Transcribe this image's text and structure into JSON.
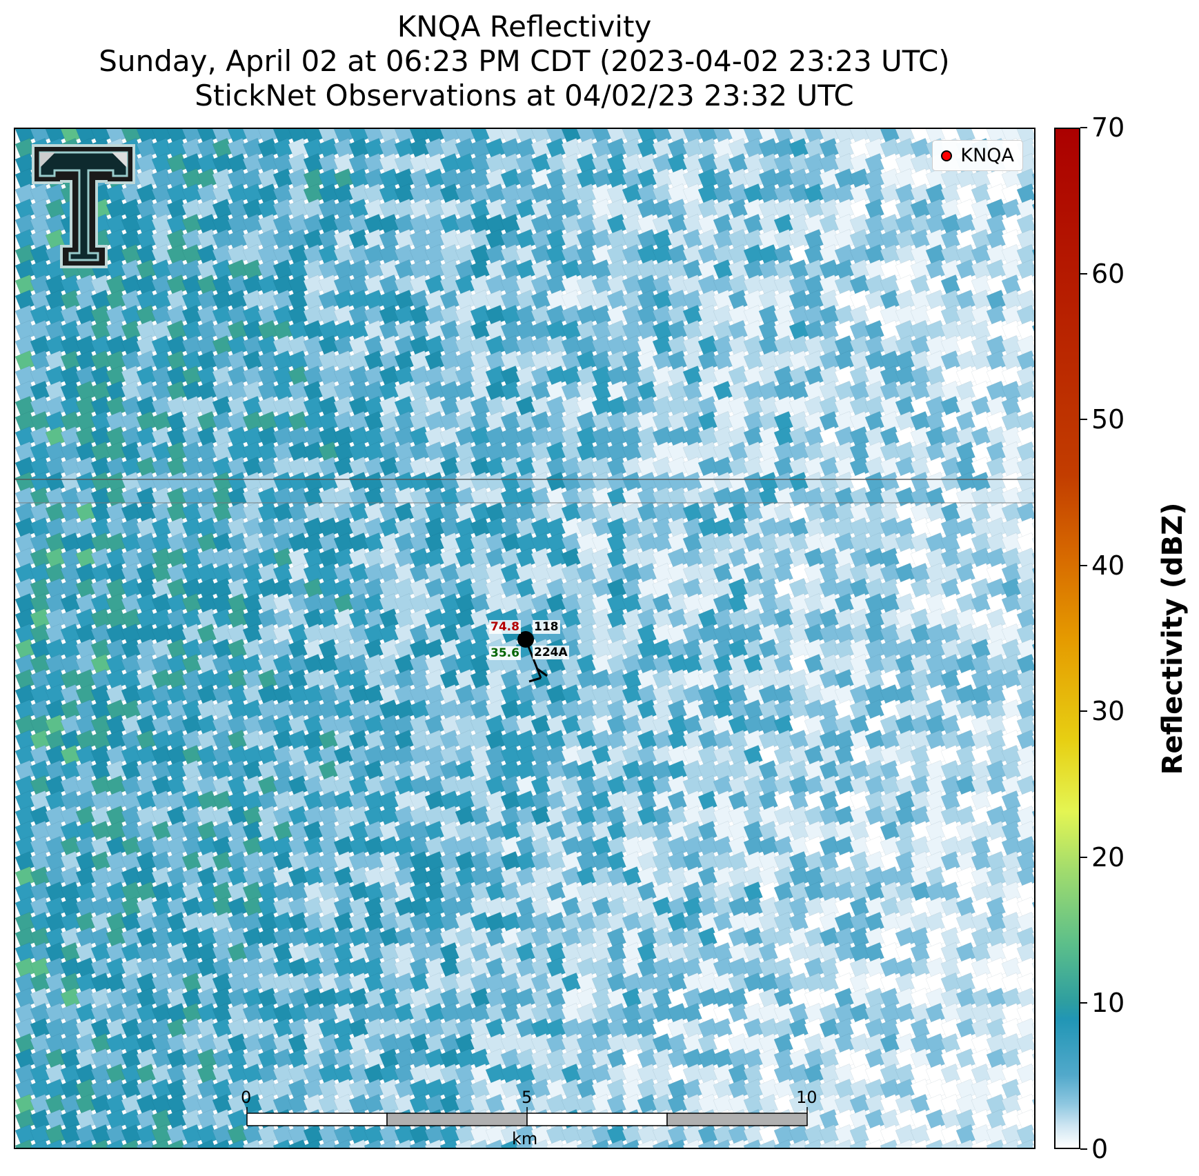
{
  "title": {
    "line1": "KNQA Reflectivity",
    "line2": "Sunday, April 02 at 06:23 PM CDT (2023-04-02 23:23 UTC)",
    "line3": "StickNet Observations at 04/02/23 23:32 UTC"
  },
  "legend": {
    "label": "KNQA",
    "marker_color": "#ff0000"
  },
  "logo": {
    "icon": "texas-tech-double-t-logo"
  },
  "station": {
    "id": "224A",
    "temperature": "74.8",
    "pressure": "118",
    "dewpoint": "35.6",
    "temperature_color": "#b30000",
    "dewpoint_color": "#006400",
    "wind_barb": "north-northwest wind barb"
  },
  "scalebar": {
    "ticks": [
      "0",
      "5",
      "10"
    ],
    "unit": "km"
  },
  "colorbar": {
    "label": "Reflectivity (dBZ)",
    "range": [
      0,
      70
    ],
    "ticks": [
      "0",
      "10",
      "20",
      "30",
      "40",
      "50",
      "60",
      "70"
    ],
    "colors": [
      "#ffffff",
      "#cfe6f2",
      "#8ec7e0",
      "#52a9cb",
      "#2196b5",
      "#2e9ea0",
      "#5cbf8a",
      "#9fdb6e",
      "#e4f553",
      "#e7cf13",
      "#e59a00",
      "#c23d00",
      "#ab0000"
    ]
  }
}
